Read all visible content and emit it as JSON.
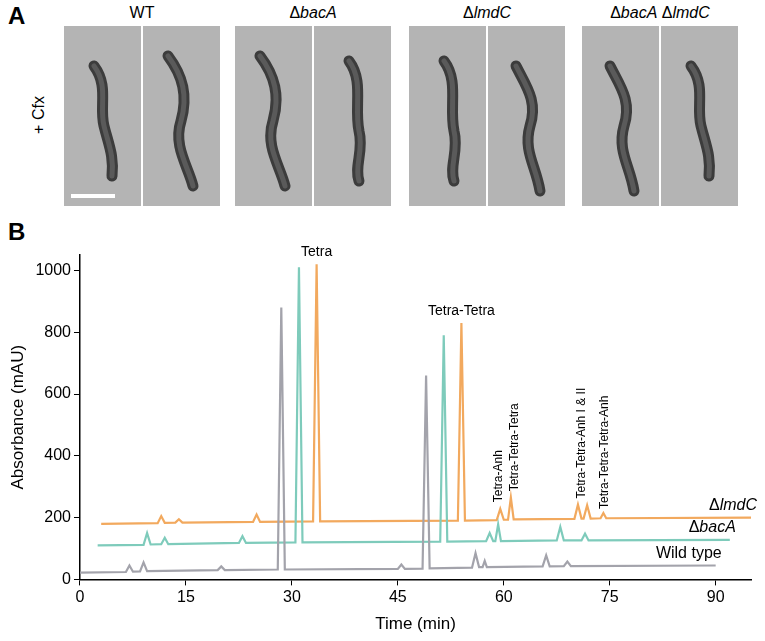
{
  "figure": {
    "panel_a": {
      "label": "A",
      "row_label": "+ Cfx",
      "columns": [
        "WT",
        "ΔbacA",
        "ΔlmdC",
        "ΔbacA ΔlmdC"
      ]
    },
    "panel_b_label": "B"
  },
  "chart_data": {
    "type": "line",
    "xlabel": "Time (min)",
    "ylabel": "Absorbance (mAU)",
    "xlim": [
      0,
      95
    ],
    "xticks": [
      0,
      15,
      30,
      45,
      60,
      75,
      90
    ],
    "ylim": [
      0,
      1050
    ],
    "yticks": [
      0,
      200,
      400,
      600,
      800,
      1000
    ],
    "grid": false,
    "series": [
      {
        "name": "Wild type",
        "color": "#a3a3ab",
        "x": [
          0,
          6.5,
          7,
          7.5,
          8.5,
          9,
          9.5,
          19.5,
          20,
          20.5,
          28,
          28.5,
          29,
          45,
          45.5,
          46,
          48.5,
          49,
          49.5,
          55.5,
          56,
          56.5,
          57,
          57.3,
          57.6,
          65.5,
          66,
          66.5,
          68.5,
          69,
          69.5,
          90
        ],
        "values": [
          22,
          24,
          45,
          25,
          26,
          55,
          27,
          30,
          42,
          30,
          32,
          880,
          32,
          34,
          48,
          34,
          35,
          660,
          36,
          38,
          85,
          40,
          40,
          60,
          40,
          42,
          78,
          42,
          43,
          58,
          43,
          45
        ]
      },
      {
        "name": "ΔbacA",
        "color": "#7ecbbb",
        "x": [
          2.5,
          9,
          9.5,
          10,
          11.5,
          12,
          12.5,
          22.5,
          23,
          23.5,
          30.5,
          31,
          31.5,
          51,
          51.5,
          52,
          57.5,
          58,
          58.5,
          58.8,
          59.2,
          59.6,
          67.5,
          68,
          68.5,
          71,
          71.5,
          72,
          92
        ],
        "values": [
          110,
          112,
          150,
          113,
          114,
          135,
          114,
          118,
          140,
          118,
          120,
          1010,
          120,
          122,
          790,
          122,
          124,
          150,
          124,
          124,
          178,
          124,
          126,
          170,
          126,
          126,
          148,
          126,
          128
        ]
      },
      {
        "name": "ΔlmdC",
        "color": "#f2a95e",
        "x": [
          3,
          11,
          11.5,
          12,
          13.5,
          14,
          14.5,
          24.5,
          25,
          25.5,
          33,
          33.5,
          34,
          53.5,
          54,
          54.5,
          59,
          59.5,
          60,
          60.6,
          61,
          61.4,
          70,
          70.5,
          71,
          71.3,
          71.8,
          72.3,
          73.7,
          74.1,
          74.5,
          95
        ],
        "values": [
          180,
          182,
          205,
          183,
          184,
          195,
          184,
          186,
          210,
          186,
          188,
          1020,
          188,
          190,
          830,
          190,
          192,
          228,
          193,
          193,
          265,
          194,
          196,
          242,
          197,
          197,
          240,
          197,
          198,
          215,
          198,
          200
        ]
      }
    ],
    "annotations": [
      {
        "text": "Tetra",
        "x": 33.5,
        "y": 1035
      },
      {
        "text": "Tetra-Tetra",
        "x": 54,
        "y": 845
      },
      {
        "text": "Tetra-Anh",
        "x": 59.3,
        "y": 250
      },
      {
        "text": "Tetra-Tetra-Tetra",
        "x": 61.5,
        "y": 285
      },
      {
        "text": "Tetra-Tetra-Anh I & II",
        "x": 71,
        "y": 262
      },
      {
        "text": "Tetra-Tetra-Tetra-Anh",
        "x": 74.3,
        "y": 228
      }
    ]
  }
}
